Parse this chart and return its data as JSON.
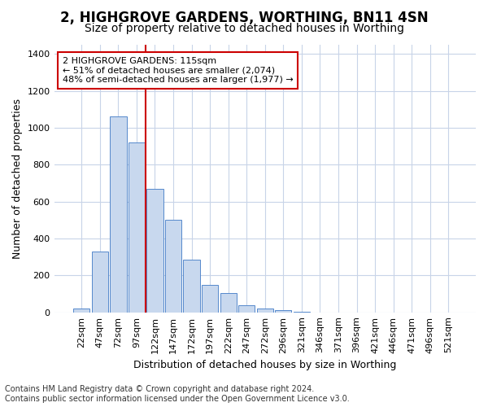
{
  "title": "2, HIGHGROVE GARDENS, WORTHING, BN11 4SN",
  "subtitle": "Size of property relative to detached houses in Worthing",
  "xlabel": "Distribution of detached houses by size in Worthing",
  "ylabel": "Number of detached properties",
  "categories": [
    "22sqm",
    "47sqm",
    "72sqm",
    "97sqm",
    "122sqm",
    "147sqm",
    "172sqm",
    "197sqm",
    "222sqm",
    "247sqm",
    "272sqm",
    "296sqm",
    "321sqm",
    "346sqm",
    "371sqm",
    "396sqm",
    "421sqm",
    "446sqm",
    "471sqm",
    "496sqm",
    "521sqm"
  ],
  "values": [
    20,
    330,
    1060,
    920,
    670,
    500,
    285,
    150,
    105,
    40,
    20,
    10,
    5,
    0,
    0,
    0,
    0,
    0,
    0,
    0,
    0
  ],
  "bar_color": "#c8d8ee",
  "bar_edge_color": "#5588cc",
  "grid_color": "#c8d4e8",
  "background_color": "#ffffff",
  "vline_color": "#cc0000",
  "annotation_text": "2 HIGHGROVE GARDENS: 115sqm\n← 51% of detached houses are smaller (2,074)\n48% of semi-detached houses are larger (1,977) →",
  "annotation_box_color": "#ffffff",
  "annotation_box_edge_color": "#cc0000",
  "ylim": [
    0,
    1450
  ],
  "yticks": [
    0,
    200,
    400,
    600,
    800,
    1000,
    1200,
    1400
  ],
  "footnote": "Contains HM Land Registry data © Crown copyright and database right 2024.\nContains public sector information licensed under the Open Government Licence v3.0.",
  "title_fontsize": 12,
  "subtitle_fontsize": 10,
  "axis_label_fontsize": 9,
  "tick_fontsize": 8,
  "annotation_fontsize": 8,
  "footnote_fontsize": 7
}
